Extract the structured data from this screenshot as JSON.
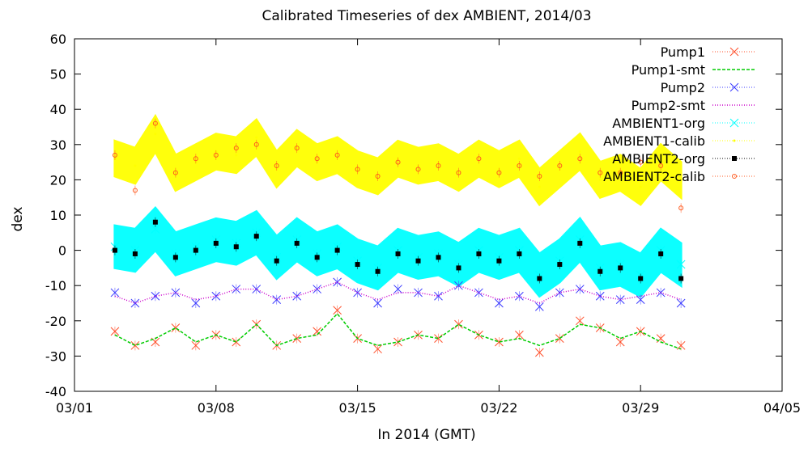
{
  "chart_data": {
    "type": "scatter",
    "title": "Calibrated Timeseries of dex AMBIENT, 2014/03",
    "xlabel": "In 2014 (GMT)",
    "ylabel": "dex",
    "xlim": [
      "2014-03-01",
      "2014-04-05"
    ],
    "ylim": [
      -40,
      60
    ],
    "x_ticks": [
      "03/01",
      "03/08",
      "03/15",
      "03/22",
      "03/29",
      "04/05"
    ],
    "y_ticks": [
      -40,
      -30,
      -20,
      -10,
      0,
      10,
      20,
      30,
      40,
      50,
      60
    ],
    "grid": false,
    "legend_position": "top-right",
    "series": [
      {
        "name": "Pump1",
        "marker": "x",
        "color": "#ff4f2a",
        "x": [
          "2014-03-03",
          "2014-03-04",
          "2014-03-05",
          "2014-03-06",
          "2014-03-07",
          "2014-03-08",
          "2014-03-09",
          "2014-03-10",
          "2014-03-11",
          "2014-03-12",
          "2014-03-13",
          "2014-03-14",
          "2014-03-15",
          "2014-03-16",
          "2014-03-17",
          "2014-03-18",
          "2014-03-19",
          "2014-03-20",
          "2014-03-21",
          "2014-03-22",
          "2014-03-23",
          "2014-03-24",
          "2014-03-25",
          "2014-03-26",
          "2014-03-27",
          "2014-03-28",
          "2014-03-29",
          "2014-03-30",
          "2014-03-31"
        ],
        "values": [
          -23,
          -27,
          -26,
          -22,
          -27,
          -24,
          -26,
          -21,
          -27,
          -25,
          -23,
          -17,
          -25,
          -28,
          -26,
          -24,
          -25,
          -21,
          -24,
          -26,
          -24,
          -29,
          -25,
          -20,
          -22,
          -26,
          -23,
          -25,
          -27
        ]
      },
      {
        "name": "Pump1-smt",
        "marker": "dashed-line",
        "color": "#00cc00",
        "x": [
          "2014-03-03",
          "2014-03-04",
          "2014-03-05",
          "2014-03-06",
          "2014-03-07",
          "2014-03-08",
          "2014-03-09",
          "2014-03-10",
          "2014-03-11",
          "2014-03-12",
          "2014-03-13",
          "2014-03-14",
          "2014-03-15",
          "2014-03-16",
          "2014-03-17",
          "2014-03-18",
          "2014-03-19",
          "2014-03-20",
          "2014-03-21",
          "2014-03-22",
          "2014-03-23",
          "2014-03-24",
          "2014-03-25",
          "2014-03-26",
          "2014-03-27",
          "2014-03-28",
          "2014-03-29",
          "2014-03-30",
          "2014-03-31"
        ],
        "values": [
          -24,
          -27,
          -25,
          -22,
          -26,
          -24,
          -26,
          -21,
          -27,
          -25,
          -24,
          -18,
          -25,
          -27,
          -26,
          -24,
          -25,
          -21,
          -24,
          -26,
          -25,
          -27,
          -25,
          -21,
          -22,
          -25,
          -23,
          -26,
          -28
        ]
      },
      {
        "name": "Pump2",
        "marker": "x",
        "color": "#3a3aff",
        "x": [
          "2014-03-03",
          "2014-03-04",
          "2014-03-05",
          "2014-03-06",
          "2014-03-07",
          "2014-03-08",
          "2014-03-09",
          "2014-03-10",
          "2014-03-11",
          "2014-03-12",
          "2014-03-13",
          "2014-03-14",
          "2014-03-15",
          "2014-03-16",
          "2014-03-17",
          "2014-03-18",
          "2014-03-19",
          "2014-03-20",
          "2014-03-21",
          "2014-03-22",
          "2014-03-23",
          "2014-03-24",
          "2014-03-25",
          "2014-03-26",
          "2014-03-27",
          "2014-03-28",
          "2014-03-29",
          "2014-03-30",
          "2014-03-31"
        ],
        "values": [
          -12,
          -15,
          -13,
          -12,
          -15,
          -13,
          -11,
          -11,
          -14,
          -13,
          -11,
          -9,
          -12,
          -15,
          -11,
          -12,
          -13,
          -10,
          -12,
          -15,
          -13,
          -16,
          -12,
          -11,
          -13,
          -14,
          -14,
          -12,
          -15
        ]
      },
      {
        "name": "Pump2-smt",
        "marker": "dotted-line",
        "color": "#cc00cc",
        "x": [
          "2014-03-03",
          "2014-03-04",
          "2014-03-05",
          "2014-03-06",
          "2014-03-07",
          "2014-03-08",
          "2014-03-09",
          "2014-03-10",
          "2014-03-11",
          "2014-03-12",
          "2014-03-13",
          "2014-03-14",
          "2014-03-15",
          "2014-03-16",
          "2014-03-17",
          "2014-03-18",
          "2014-03-19",
          "2014-03-20",
          "2014-03-21",
          "2014-03-22",
          "2014-03-23",
          "2014-03-24",
          "2014-03-25",
          "2014-03-26",
          "2014-03-27",
          "2014-03-28",
          "2014-03-29",
          "2014-03-30",
          "2014-03-31"
        ],
        "values": [
          -13,
          -15,
          -13,
          -12,
          -14,
          -13,
          -11,
          -11,
          -14,
          -13,
          -11,
          -9,
          -12,
          -14,
          -12,
          -12,
          -13,
          -10,
          -12,
          -14,
          -13,
          -15,
          -12,
          -11,
          -13,
          -14,
          -13,
          -12,
          -14
        ]
      },
      {
        "name": "AMBIENT1-org",
        "marker": "x",
        "color": "#00ffff",
        "x": [
          "2014-03-03",
          "2014-03-04",
          "2014-03-05",
          "2014-03-06",
          "2014-03-07",
          "2014-03-08",
          "2014-03-09",
          "2014-03-10",
          "2014-03-11",
          "2014-03-12",
          "2014-03-13",
          "2014-03-14",
          "2014-03-15",
          "2014-03-16",
          "2014-03-17",
          "2014-03-18",
          "2014-03-19",
          "2014-03-20",
          "2014-03-21",
          "2014-03-22",
          "2014-03-23",
          "2014-03-24",
          "2014-03-25",
          "2014-03-26",
          "2014-03-27",
          "2014-03-28",
          "2014-03-29",
          "2014-03-30",
          "2014-03-31"
        ],
        "values": [
          1,
          0,
          6,
          -1,
          1,
          3,
          2,
          5,
          -2,
          3,
          -1,
          1,
          -3,
          -5,
          0,
          -2,
          -1,
          -4,
          0,
          -2,
          0,
          -7,
          -3,
          3,
          -5,
          -4,
          -7,
          0,
          -4
        ]
      },
      {
        "name": "AMBIENT1-calib",
        "marker": "dot",
        "color": "#ffff00",
        "x": [
          "2014-03-03",
          "2014-03-04",
          "2014-03-05",
          "2014-03-06",
          "2014-03-07",
          "2014-03-08",
          "2014-03-09",
          "2014-03-10",
          "2014-03-11",
          "2014-03-12",
          "2014-03-13",
          "2014-03-14",
          "2014-03-15",
          "2014-03-16",
          "2014-03-17",
          "2014-03-18",
          "2014-03-19",
          "2014-03-20",
          "2014-03-21",
          "2014-03-22",
          "2014-03-23",
          "2014-03-24",
          "2014-03-25",
          "2014-03-26",
          "2014-03-27",
          "2014-03-28",
          "2014-03-29",
          "2014-03-30",
          "2014-03-31"
        ],
        "values": [
          26,
          24,
          33,
          22,
          25,
          28,
          27,
          32,
          23,
          29,
          25,
          27,
          23,
          21,
          26,
          24,
          25,
          22,
          26,
          23,
          26,
          18,
          23,
          28,
          20,
          22,
          18,
          25,
          20
        ]
      },
      {
        "name": "AMBIENT2-org",
        "marker": "square",
        "color": "#000000",
        "x": [
          "2014-03-03",
          "2014-03-04",
          "2014-03-05",
          "2014-03-06",
          "2014-03-07",
          "2014-03-08",
          "2014-03-09",
          "2014-03-10",
          "2014-03-11",
          "2014-03-12",
          "2014-03-13",
          "2014-03-14",
          "2014-03-15",
          "2014-03-16",
          "2014-03-17",
          "2014-03-18",
          "2014-03-19",
          "2014-03-20",
          "2014-03-21",
          "2014-03-22",
          "2014-03-23",
          "2014-03-24",
          "2014-03-25",
          "2014-03-26",
          "2014-03-27",
          "2014-03-28",
          "2014-03-29",
          "2014-03-30",
          "2014-03-31"
        ],
        "values": [
          0,
          -1,
          8,
          -2,
          0,
          2,
          1,
          4,
          -3,
          2,
          -2,
          0,
          -4,
          -6,
          -1,
          -3,
          -2,
          -5,
          -1,
          -3,
          -1,
          -8,
          -4,
          2,
          -6,
          -5,
          -8,
          -1,
          -8
        ]
      },
      {
        "name": "AMBIENT2-calib",
        "marker": "circle",
        "color": "#ff5a1f",
        "x": [
          "2014-03-03",
          "2014-03-04",
          "2014-03-05",
          "2014-03-06",
          "2014-03-07",
          "2014-03-08",
          "2014-03-09",
          "2014-03-10",
          "2014-03-11",
          "2014-03-12",
          "2014-03-13",
          "2014-03-14",
          "2014-03-15",
          "2014-03-16",
          "2014-03-17",
          "2014-03-18",
          "2014-03-19",
          "2014-03-20",
          "2014-03-21",
          "2014-03-22",
          "2014-03-23",
          "2014-03-24",
          "2014-03-25",
          "2014-03-26",
          "2014-03-27",
          "2014-03-28",
          "2014-03-29",
          "2014-03-30",
          "2014-03-31"
        ],
        "values": [
          27,
          17,
          36,
          22,
          26,
          27,
          29,
          30,
          24,
          29,
          26,
          27,
          23,
          21,
          25,
          23,
          24,
          22,
          26,
          22,
          24,
          21,
          24,
          26,
          22,
          22,
          25,
          24,
          12
        ]
      }
    ]
  }
}
